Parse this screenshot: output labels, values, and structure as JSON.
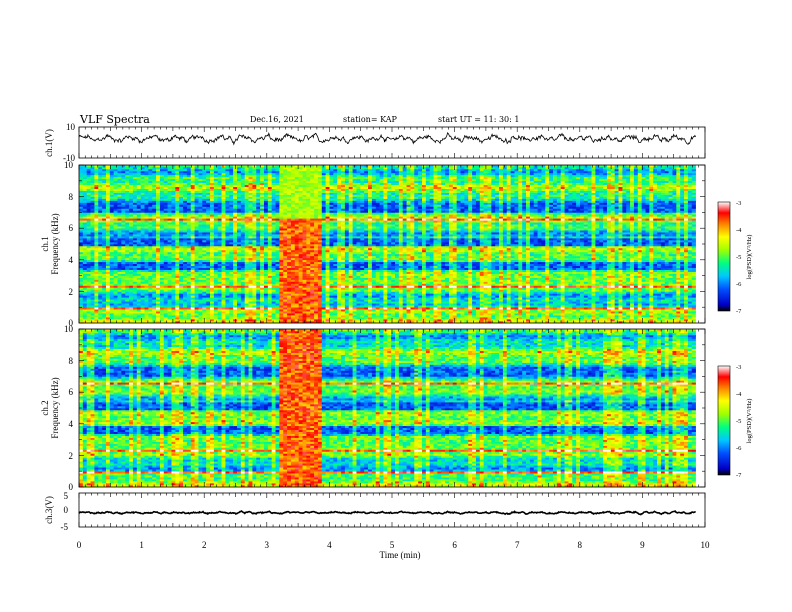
{
  "header": {
    "title": "VLF Spectra",
    "date": "Dec.16, 2021",
    "station": "station= KAP",
    "start_ut": "start  UT  =   11: 30: 1"
  },
  "chart_data": [
    {
      "type": "line",
      "name": "channel-1-waveform",
      "ylabel": "ch.1(V)",
      "ylim": [
        -10,
        10
      ],
      "ytick_labels": [
        "10",
        "-10"
      ],
      "x_range_min": [
        0,
        9.85
      ],
      "baseline_v": 2.5,
      "amplitude_v": 2.2
    },
    {
      "type": "heatmap",
      "name": "channel-1-spectrogram",
      "ylabel_top": "ch.1",
      "ylabel_bottom": "Frequency (kHz)",
      "ylim": [
        0,
        10
      ],
      "ytick_labels": [
        "0",
        "2",
        "4",
        "6",
        "8",
        "10"
      ],
      "x_range_min": [
        0,
        9.85
      ],
      "burst_interval_min": [
        3.2,
        3.85
      ],
      "burst_top_khz": 6.6,
      "colorbar": {
        "range": [
          -7,
          -3
        ],
        "tick_labels": [
          "-7",
          "-6",
          "-5",
          "-4",
          "-3"
        ],
        "label": "log(PSD)(V²/Hz)"
      }
    },
    {
      "type": "heatmap",
      "name": "channel-2-spectrogram",
      "ylabel_top": "ch.2",
      "ylabel_bottom": "Frequency (kHz)",
      "ylim": [
        0,
        10
      ],
      "ytick_labels": [
        "0",
        "2",
        "4",
        "6",
        "8",
        "10"
      ],
      "x_range_min": [
        0,
        9.85
      ],
      "burst_interval_min": [
        3.2,
        3.85
      ],
      "burst_top_khz": 10,
      "colorbar": {
        "range": [
          -7,
          -3
        ],
        "tick_labels": [
          "-7",
          "-6",
          "-5",
          "-4",
          "-3"
        ],
        "label": "log(PSD)(V²/Hz)"
      }
    },
    {
      "type": "line",
      "name": "channel-3-waveform",
      "ylabel": "ch.3(V)",
      "ylim": [
        -5,
        5
      ],
      "ytick_labels": [
        "5",
        "0",
        "-5"
      ],
      "x_range_min": [
        0,
        9.85
      ],
      "baseline_v": -0.8,
      "amplitude_v": 0.3
    }
  ],
  "x_axis": {
    "label": "Time (min)",
    "range": [
      0,
      10
    ],
    "tick_labels": [
      "0",
      "1",
      "2",
      "3",
      "4",
      "5",
      "6",
      "7",
      "8",
      "9",
      "10"
    ]
  },
  "colors": {
    "frame": "#000000",
    "trace": "#000000",
    "colormap": [
      "#000000",
      "#0000c8",
      "#0050ff",
      "#00c8ff",
      "#00ff80",
      "#a0ff00",
      "#ffff00",
      "#ff8000",
      "#ff0000",
      "#ffffff"
    ]
  }
}
